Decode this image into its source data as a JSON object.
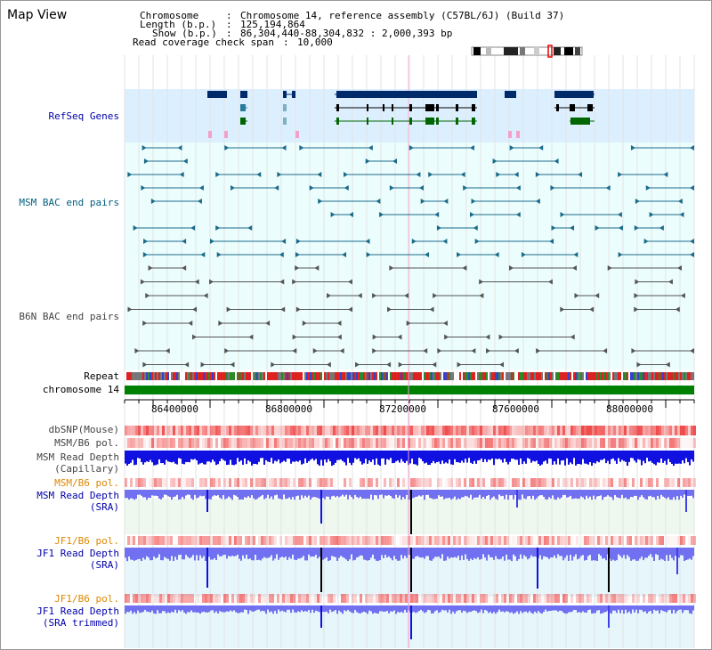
{
  "title": "Map View",
  "header": {
    "chromosome_label": "Chromosome",
    "chromosome_value": "Chromosome 14, reference assembly (C57BL/6J) (Build 37)",
    "length_label": "Length (b.p.)",
    "length_value": "125,194,864",
    "show_label": "Show (b.p.)",
    "show_value": "86,304,440-88,304,832 : 2,000,393 bp",
    "span_label": "Read coverage check span",
    "span_value": "10,000"
  },
  "tracks": {
    "refseq": "RefSeq Genes",
    "msm_bac": "MSM BAC end pairs",
    "b6n_bac": "B6N BAC end pairs",
    "repeat": "Repeat",
    "chromosome": "chromosome 14",
    "dbsnp": "dbSNP(Mouse)",
    "msm_b6_pol": "MSM/B6 pol.",
    "msm_depth_cap_1": "MSM Read Depth",
    "msm_depth_cap_2": "(Capillary)",
    "msm_b6_pol_2": "MSM/B6 pol.",
    "msm_depth_sra_1": "MSM Read Depth",
    "msm_depth_sra_2": "(SRA)",
    "jf1_b6_pol": "JF1/B6 pol.",
    "jf1_depth_sra_1": "JF1 Read Depth",
    "jf1_depth_sra_2": "(SRA)",
    "jf1_b6_pol_2": "JF1/B6 pol.",
    "jf1_depth_trim_1": "JF1 Read Depth",
    "jf1_depth_trim_2": "(SRA trimmed)"
  },
  "axis_ticks": [
    "86400000",
    "86800000",
    "87200000",
    "87600000",
    "88000000"
  ],
  "colors": {
    "refseq_bg": "#dcefff",
    "track_bg": "#ecfdfd",
    "gene_dark": "#002a6a",
    "gene_green": "#006600",
    "bac_teal": "#1a6a8a",
    "bac_gray": "#555555",
    "chrom_green": "#008000",
    "depth_blue": "#1010e0",
    "depth_light": "#7070f0",
    "pol_red": "#ee3333"
  }
}
